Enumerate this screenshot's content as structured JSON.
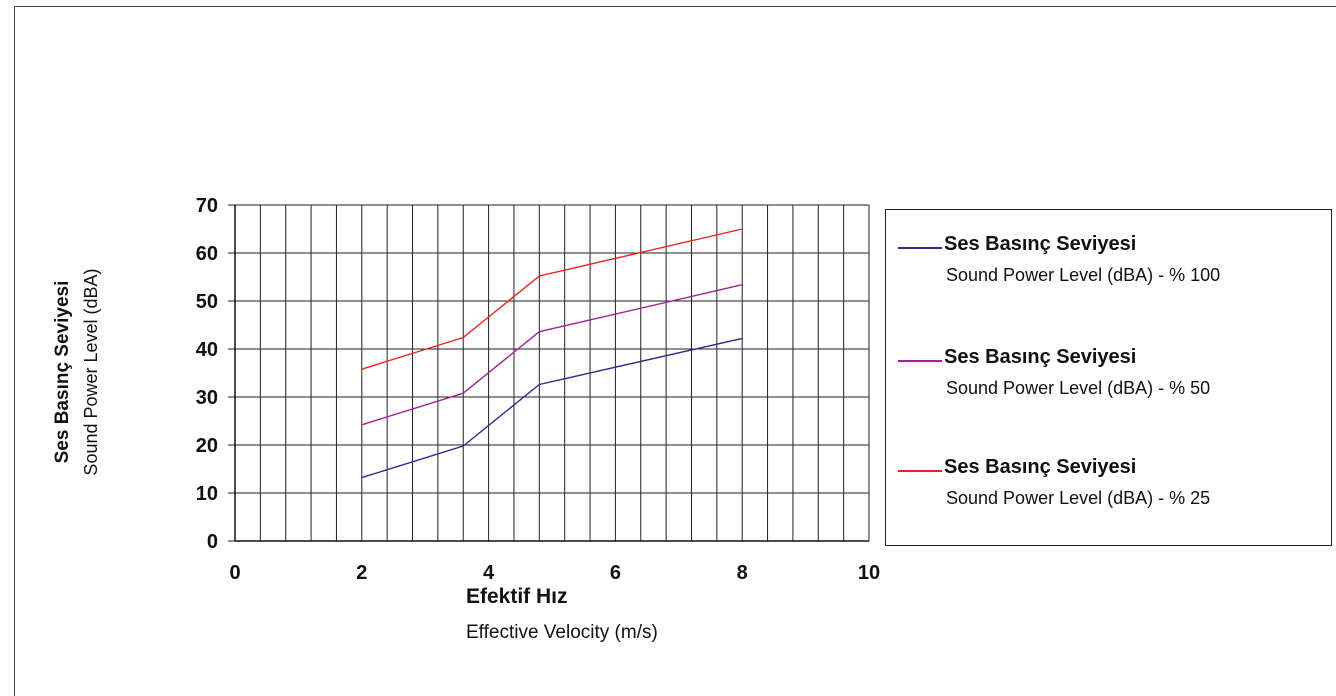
{
  "chart_data": {
    "type": "line",
    "xlim": [
      0,
      10
    ],
    "ylim": [
      0,
      70
    ],
    "x_ticks": [
      0,
      2,
      4,
      6,
      8,
      10
    ],
    "y_ticks": [
      0,
      10,
      20,
      30,
      40,
      50,
      60,
      70
    ],
    "grid": true,
    "x_minor_step": 0.4,
    "y_major_step": 10,
    "xlabel_bold": "Efektif Hız",
    "xlabel": "Effective Velocity (m/s)",
    "ylabel_bold": "Ses Basınç Seviyesi",
    "ylabel": "Sound Power Level (dBA)",
    "legend_position": "right",
    "series": [
      {
        "name": "Ses Basınç Seviyesi",
        "subtitle": "Sound Power Level (dBA) - % 100",
        "color": "#2b2f8f",
        "x": [
          2,
          3.6,
          4.8,
          8
        ],
        "y": [
          13.2,
          19.8,
          32.6,
          42.2
        ]
      },
      {
        "name": "Ses Basınç Seviyesi",
        "subtitle": "Sound Power Level (dBA) - % 50",
        "color": "#a0229a",
        "x": [
          2,
          3.6,
          4.8,
          8
        ],
        "y": [
          24.2,
          30.8,
          43.6,
          53.4
        ]
      },
      {
        "name": "Ses Basınç Seviyesi",
        "subtitle": "Sound Power Level (dBA) - % 25",
        "color": "#e8231f",
        "x": [
          2,
          3.6,
          4.8,
          8
        ],
        "y": [
          35.8,
          42.4,
          55.2,
          65.0
        ]
      }
    ]
  }
}
